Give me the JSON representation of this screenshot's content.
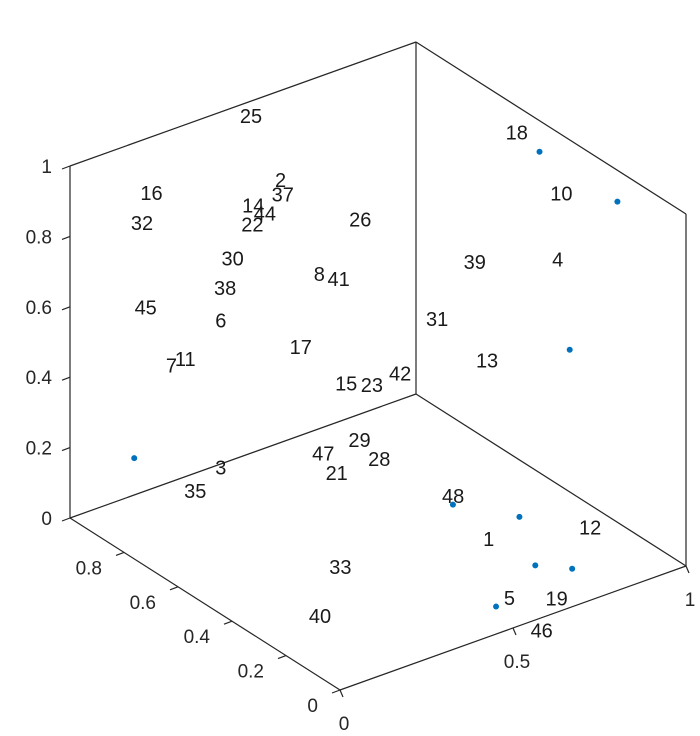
{
  "chart_data": {
    "type": "scatter3d",
    "title": "",
    "xlabel": "",
    "ylabel": "",
    "zlabel": "",
    "grid": false,
    "box": true,
    "axes": {
      "z": {
        "range": [
          0,
          1
        ],
        "ticks": [
          {
            "value": 0,
            "label": "0"
          },
          {
            "value": 0.2,
            "label": "0.2"
          },
          {
            "value": 0.4,
            "label": "0.4"
          },
          {
            "value": 0.6,
            "label": "0.6"
          },
          {
            "value": 0.8,
            "label": "0.8"
          },
          {
            "value": 1,
            "label": "1"
          }
        ]
      },
      "y": {
        "range": [
          0,
          1
        ],
        "ticks": [
          {
            "value": 0,
            "label": "0"
          },
          {
            "value": 0.2,
            "label": "0.2"
          },
          {
            "value": 0.4,
            "label": "0.4"
          },
          {
            "value": 0.6,
            "label": "0.6"
          },
          {
            "value": 0.8,
            "label": "0.8"
          }
        ]
      },
      "x": {
        "range": [
          0,
          1
        ],
        "ticks": [
          {
            "value": 0,
            "label": "0"
          },
          {
            "value": 0.5,
            "label": "0.5"
          },
          {
            "value": 1,
            "label": "1"
          }
        ]
      }
    },
    "marker_color": "#0072BD",
    "points": [
      {
        "x": 0.49,
        "y": 0.05,
        "z": 0.04
      },
      {
        "x": 0.62,
        "y": 0.13,
        "z": 0.21
      },
      {
        "x": 0.71,
        "y": 0.05,
        "z": 0.07
      },
      {
        "x": 0.82,
        "y": 0.2,
        "z": 0.58
      },
      {
        "x": 0.92,
        "y": 0.44,
        "z": 0.99
      },
      {
        "x": 0.95,
        "y": 0.19,
        "z": 0.96
      },
      {
        "x": 0.42,
        "y": 0.12,
        "z": 0.32
      },
      {
        "x": 0.17,
        "y": 0.98,
        "z": 0.12
      },
      {
        "x": 0.58,
        "y": 0.02,
        "z": 0.14
      }
    ],
    "labels": [
      {
        "text": "1",
        "x": 0.502,
        "y": 0.113,
        "z": 0.197
      },
      {
        "text": "2",
        "x": 0.534,
        "y": 0.925,
        "z": 0.809
      },
      {
        "text": "3",
        "x": 0.196,
        "y": 0.713,
        "z": 0.214
      },
      {
        "text": "4",
        "x": 0.83,
        "y": 0.278,
        "z": 0.795
      },
      {
        "text": "5",
        "x": 0.526,
        "y": 0.067,
        "z": 0.044
      },
      {
        "text": "6",
        "x": 0.337,
        "y": 0.894,
        "z": 0.494
      },
      {
        "text": "7",
        "x": 0.164,
        "y": 0.855,
        "z": 0.447
      },
      {
        "text": "8",
        "x": 0.522,
        "y": 0.766,
        "z": 0.623
      },
      {
        "text": "10",
        "x": 0.859,
        "y": 0.322,
        "z": 0.951
      },
      {
        "text": "11",
        "x": 0.189,
        "y": 0.854,
        "z": 0.456
      },
      {
        "text": "12",
        "x": 0.732,
        "y": 0.053,
        "z": 0.178
      },
      {
        "text": "13",
        "x": 0.659,
        "y": 0.341,
        "z": 0.537
      },
      {
        "text": "14",
        "x": 0.393,
        "y": 0.866,
        "z": 0.815
      },
      {
        "text": "15",
        "x": 0.429,
        "y": 0.568,
        "z": 0.442
      },
      {
        "text": "16",
        "x": 0.183,
        "y": 0.974,
        "z": 0.871
      },
      {
        "text": "17",
        "x": 0.385,
        "y": 0.68,
        "z": 0.507
      },
      {
        "text": "18",
        "x": 0.837,
        "y": 0.459,
        "z": 1.064
      },
      {
        "text": "19",
        "x": 0.618,
        "y": 0.031,
        "z": 0.027
      },
      {
        "text": "21",
        "x": 0.343,
        "y": 0.493,
        "z": 0.255
      },
      {
        "text": "22",
        "x": 0.41,
        "y": 0.891,
        "z": 0.742
      },
      {
        "text": "23",
        "x": 0.515,
        "y": 0.583,
        "z": 0.4
      },
      {
        "text": "25",
        "x": 0.47,
        "y": 0.973,
        "z": 0.99
      },
      {
        "text": "26",
        "x": 0.571,
        "y": 0.698,
        "z": 0.795
      },
      {
        "text": "28",
        "x": 0.473,
        "y": 0.502,
        "z": 0.245
      },
      {
        "text": "29",
        "x": 0.43,
        "y": 0.52,
        "z": 0.305
      },
      {
        "text": "30",
        "x": 0.348,
        "y": 0.885,
        "z": 0.671
      },
      {
        "text": "31",
        "x": 0.649,
        "y": 0.513,
        "z": 0.574
      },
      {
        "text": "32",
        "x": 0.137,
        "y": 0.95,
        "z": 0.814
      },
      {
        "text": "33",
        "x": 0.314,
        "y": 0.442,
        "z": 0.023
      },
      {
        "text": "35",
        "x": 0.138,
        "y": 0.754,
        "z": 0.149
      },
      {
        "text": "37",
        "x": 0.458,
        "y": 0.84,
        "z": 0.836
      },
      {
        "text": "38",
        "x": 0.307,
        "y": 0.86,
        "z": 0.613
      },
      {
        "text": "39",
        "x": 0.685,
        "y": 0.42,
        "z": 0.77
      },
      {
        "text": "40",
        "x": 0.255,
        "y": 0.442,
        "z": -0.096
      },
      {
        "text": "41",
        "x": 0.529,
        "y": 0.724,
        "z": 0.628
      },
      {
        "text": "42",
        "x": 0.563,
        "y": 0.54,
        "z": 0.437
      },
      {
        "text": "44",
        "x": 0.428,
        "y": 0.868,
        "z": 0.779
      },
      {
        "text": "45",
        "x": 0.171,
        "y": 0.98,
        "z": 0.548
      },
      {
        "text": "46",
        "x": 0.589,
        "y": 0.049,
        "z": -0.062
      },
      {
        "text": "47",
        "x": 0.347,
        "y": 0.548,
        "z": 0.282
      },
      {
        "text": "48",
        "x": 0.532,
        "y": 0.304,
        "z": 0.215
      }
    ]
  }
}
